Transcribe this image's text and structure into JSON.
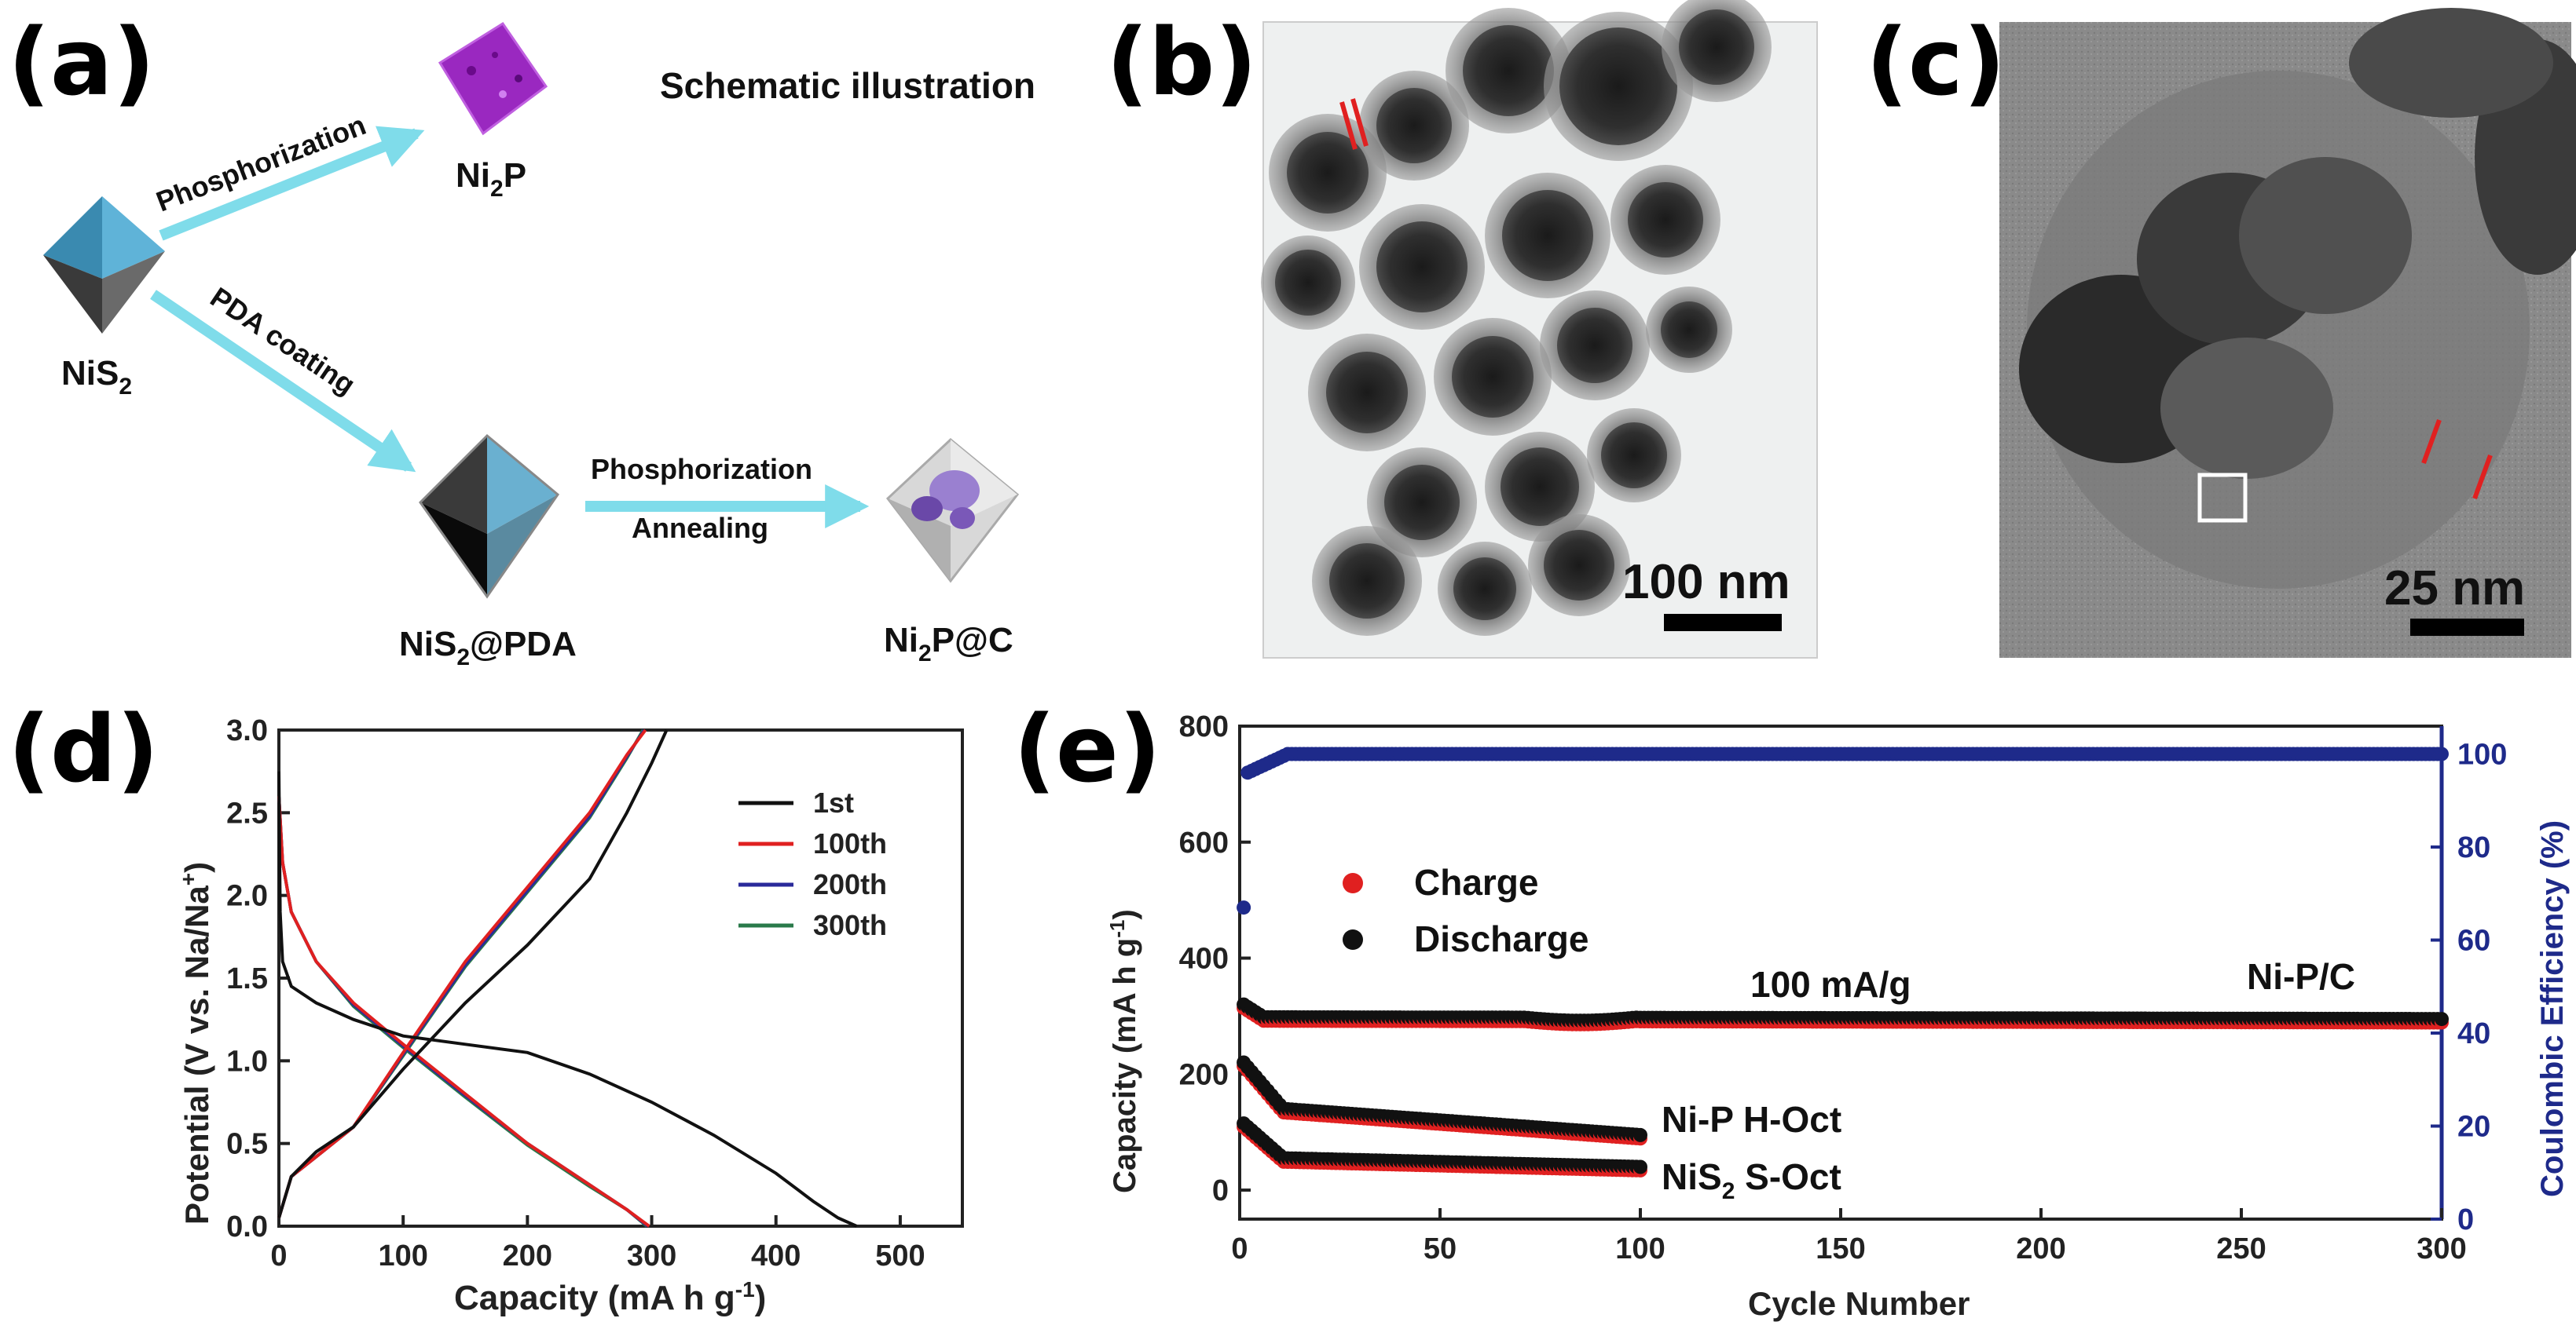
{
  "panels": {
    "a": "(a)",
    "b": "(b)",
    "c": "(c)",
    "d": "(d)",
    "e": "(e)"
  },
  "schematic": {
    "title": "Schematic illustration",
    "arrow_top_label": "Phosphorization",
    "arrow_mid_label": "PDA coating",
    "arrow_right_label1": "Phosphorization",
    "arrow_right_label2": "Annealing",
    "nodes": {
      "nis2": {
        "main": "NiS",
        "sub": "2"
      },
      "ni2p": {
        "main": "Ni",
        "sub": "2",
        "rest": "P"
      },
      "nis2pda": {
        "main": "NiS",
        "sub": "2",
        "rest": "@PDA"
      },
      "ni2pc": {
        "main": "Ni",
        "sub": "2",
        "rest": "P@C"
      }
    },
    "colors": {
      "arrow": "#7fdcea",
      "nis2": "#3b8fb8",
      "ni2p": "#a030c8",
      "pda": "#1a1a1a",
      "carbon": "#c8c8c8",
      "particle": "#8060b8"
    }
  },
  "micrographs": {
    "b": {
      "scale": "100 nm"
    },
    "c": {
      "scale": "25 nm"
    }
  },
  "chart_data": [
    {
      "type": "line",
      "panel": "d",
      "xlabel": "Capacity (mA h g",
      "xlabel_sup": "-1",
      "xlabel_end": ")",
      "ylabel": "Potential (V vs. Na/Na",
      "ylabel_sup": "+",
      "ylabel_end": ")",
      "xlim": [
        0,
        550
      ],
      "ylim": [
        0,
        3.0
      ],
      "xticks": [
        "0",
        "100",
        "200",
        "300",
        "400",
        "500"
      ],
      "yticks": [
        "0.0",
        "0.5",
        "1.0",
        "1.5",
        "2.0",
        "2.5",
        "3.0"
      ],
      "series": [
        {
          "name": "1st",
          "color": "#111111",
          "discharge": [
            [
              0,
              2.75
            ],
            [
              1,
              1.9
            ],
            [
              3,
              1.6
            ],
            [
              10,
              1.45
            ],
            [
              30,
              1.35
            ],
            [
              60,
              1.25
            ],
            [
              100,
              1.15
            ],
            [
              150,
              1.1
            ],
            [
              200,
              1.05
            ],
            [
              250,
              0.92
            ],
            [
              300,
              0.75
            ],
            [
              350,
              0.55
            ],
            [
              400,
              0.32
            ],
            [
              430,
              0.15
            ],
            [
              450,
              0.05
            ],
            [
              465,
              0.0
            ]
          ],
          "charge": [
            [
              0,
              0.05
            ],
            [
              10,
              0.3
            ],
            [
              30,
              0.45
            ],
            [
              60,
              0.6
            ],
            [
              100,
              0.95
            ],
            [
              150,
              1.35
            ],
            [
              200,
              1.7
            ],
            [
              250,
              2.1
            ],
            [
              280,
              2.5
            ],
            [
              300,
              2.8
            ],
            [
              312,
              3.0
            ]
          ]
        },
        {
          "name": "100th",
          "color": "#e02020",
          "discharge": [
            [
              0,
              2.6
            ],
            [
              3,
              2.2
            ],
            [
              10,
              1.9
            ],
            [
              30,
              1.6
            ],
            [
              60,
              1.35
            ],
            [
              100,
              1.1
            ],
            [
              150,
              0.8
            ],
            [
              200,
              0.5
            ],
            [
              250,
              0.25
            ],
            [
              280,
              0.1
            ],
            [
              298,
              0.0
            ]
          ],
          "charge": [
            [
              0,
              0.05
            ],
            [
              10,
              0.3
            ],
            [
              30,
              0.42
            ],
            [
              60,
              0.6
            ],
            [
              100,
              1.05
            ],
            [
              150,
              1.6
            ],
            [
              200,
              2.05
            ],
            [
              250,
              2.5
            ],
            [
              280,
              2.85
            ],
            [
              295,
              3.0
            ]
          ]
        },
        {
          "name": "200th",
          "color": "#2a2a9a",
          "discharge": [
            [
              0,
              2.6
            ],
            [
              3,
              2.2
            ],
            [
              10,
              1.9
            ],
            [
              30,
              1.6
            ],
            [
              60,
              1.34
            ],
            [
              100,
              1.09
            ],
            [
              150,
              0.79
            ],
            [
              200,
              0.5
            ],
            [
              250,
              0.25
            ],
            [
              280,
              0.1
            ],
            [
              297,
              0.0
            ]
          ],
          "charge": [
            [
              0,
              0.05
            ],
            [
              10,
              0.3
            ],
            [
              30,
              0.42
            ],
            [
              60,
              0.6
            ],
            [
              100,
              1.04
            ],
            [
              150,
              1.58
            ],
            [
              200,
              2.03
            ],
            [
              250,
              2.48
            ],
            [
              280,
              2.84
            ],
            [
              294,
              3.0
            ]
          ]
        },
        {
          "name": "300th",
          "color": "#2a7a4a",
          "discharge": [
            [
              0,
              2.6
            ],
            [
              3,
              2.2
            ],
            [
              10,
              1.9
            ],
            [
              30,
              1.6
            ],
            [
              60,
              1.33
            ],
            [
              100,
              1.08
            ],
            [
              150,
              0.78
            ],
            [
              200,
              0.49
            ],
            [
              250,
              0.24
            ],
            [
              280,
              0.1
            ],
            [
              296,
              0.0
            ]
          ],
          "charge": [
            [
              0,
              0.05
            ],
            [
              10,
              0.3
            ],
            [
              30,
              0.42
            ],
            [
              60,
              0.6
            ],
            [
              100,
              1.03
            ],
            [
              150,
              1.57
            ],
            [
              200,
              2.02
            ],
            [
              250,
              2.47
            ],
            [
              280,
              2.83
            ],
            [
              293,
              3.0
            ]
          ]
        }
      ],
      "legend": [
        "1st",
        "100th",
        "200th",
        "300th"
      ],
      "legend_position": "top-right"
    },
    {
      "type": "scatter",
      "panel": "e",
      "xlabel": "Cycle Number",
      "ylabel": "Capacity (mA h g",
      "ylabel_sup": "-1",
      "ylabel_end": ")",
      "y2label": "Coulombic Efficiency (%)",
      "xlim": [
        0,
        300
      ],
      "ylim": [
        -50,
        800
      ],
      "y2lim": [
        0,
        106
      ],
      "xticks": [
        "0",
        "50",
        "100",
        "150",
        "200",
        "250",
        "300"
      ],
      "yticks": [
        "0",
        "200",
        "400",
        "600",
        "800"
      ],
      "y2ticks": [
        "0",
        "20",
        "40",
        "60",
        "80",
        "100"
      ],
      "legend": [
        {
          "name": "Charge",
          "color": "#e02020"
        },
        {
          "name": "Discharge",
          "color": "#111111"
        }
      ],
      "annotations": {
        "rate": "100 mA/g",
        "nipc": "Ni-P/C",
        "niph": "Ni-P H-Oct",
        "nis2_main": "NiS",
        "nis2_sub": "2",
        "nis2_rest": " S-Oct"
      },
      "series": [
        {
          "name": "Ni-P/C",
          "cycles": [
            1,
            300
          ],
          "initial": 320,
          "plateau": 298,
          "end": 295
        },
        {
          "name": "Ni-P H-Oct",
          "cycles": [
            1,
            100
          ],
          "initial": 220,
          "mid": 140,
          "end": 95
        },
        {
          "name": "NiS2 S-Oct",
          "cycles": [
            1,
            100
          ],
          "initial": 115,
          "mid": 55,
          "end": 40
        },
        {
          "name": "Coulombic Efficiency",
          "axis": "right",
          "color": "#1e2a8a",
          "first": 67,
          "second": 96,
          "plateau": 100
        }
      ]
    }
  ]
}
